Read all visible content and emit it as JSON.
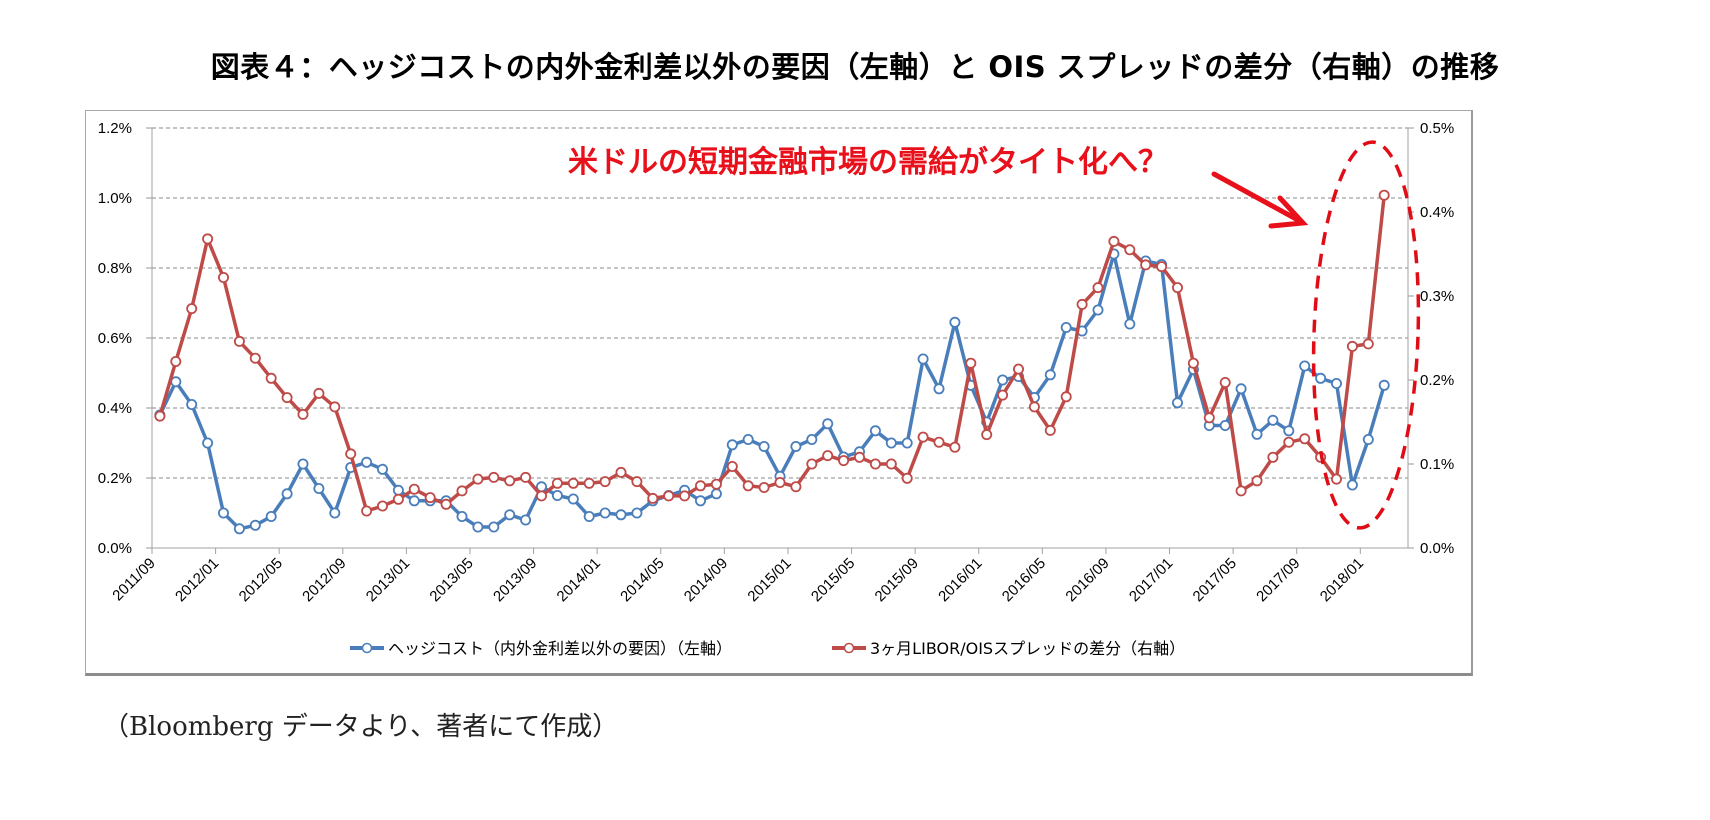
{
  "title": "図表４：ヘッジコストの内外金利差以外の要因（左軸）と OIS スプレッドの差分（右軸）の推移",
  "source_note": "（Bloomberg データより、著者にて作成）",
  "chart_data": {
    "type": "line",
    "title": "図表４：ヘッジコストの内外金利差以外の要因（左軸）と OIS スプレッドの差分（右軸）の推移",
    "xlabel": "",
    "ylabel": "",
    "x_start": "2011/09",
    "x_end": "2018/02",
    "x_tick_labels": [
      "2011/09",
      "2012/01",
      "2012/05",
      "2012/09",
      "2013/01",
      "2013/05",
      "2013/09",
      "2014/01",
      "2014/05",
      "2014/09",
      "2015/01",
      "2015/05",
      "2015/09",
      "2016/01",
      "2016/05",
      "2016/09",
      "2017/01",
      "2017/05",
      "2017/09",
      "2018/01"
    ],
    "y_left": {
      "ylim": [
        0,
        1.2
      ],
      "ticks": [
        "0.0%",
        "0.2%",
        "0.4%",
        "0.6%",
        "0.8%",
        "1.0%",
        "1.2%"
      ],
      "tick_values": [
        0,
        0.2,
        0.4,
        0.6,
        0.8,
        1.0,
        1.2
      ]
    },
    "y_right": {
      "ylim": [
        0,
        0.5
      ],
      "ticks": [
        "0.0%",
        "0.1%",
        "0.2%",
        "0.3%",
        "0.4%",
        "0.5%"
      ],
      "tick_values": [
        0,
        0.1,
        0.2,
        0.3,
        0.4,
        0.5
      ]
    },
    "grid": "horizontal dashed (left axis)",
    "legend_position": "bottom",
    "series": [
      {
        "name": "ヘッジコスト（内外金利差以外の要因）（左軸）",
        "axis": "left",
        "color": "#4a7ebb",
        "unit": "%",
        "values": [
          0.38,
          0.475,
          0.41,
          0.3,
          0.1,
          0.055,
          0.065,
          0.09,
          0.155,
          0.24,
          0.17,
          0.1,
          0.23,
          0.245,
          0.225,
          0.165,
          0.135,
          0.135,
          0.135,
          0.09,
          0.06,
          0.06,
          0.095,
          0.08,
          0.175,
          0.15,
          0.14,
          0.09,
          0.1,
          0.095,
          0.1,
          0.135,
          0.15,
          0.165,
          0.135,
          0.155,
          0.295,
          0.31,
          0.29,
          0.205,
          0.29,
          0.31,
          0.355,
          0.26,
          0.275,
          0.335,
          0.3,
          0.3,
          0.54,
          0.455,
          0.645,
          0.465,
          0.36,
          0.48,
          0.49,
          0.43,
          0.495,
          0.63,
          0.62,
          0.68,
          0.84,
          0.64,
          0.82,
          0.81,
          0.415,
          0.51,
          0.35,
          0.35,
          0.455,
          0.325,
          0.365,
          0.335,
          0.52,
          0.485,
          0.47,
          0.18,
          0.31,
          0.465
        ]
      },
      {
        "name": "3ヶ月LIBOR/OISスプレッドの差分（右軸）",
        "axis": "right",
        "color": "#be4b48",
        "unit": "%",
        "values": [
          0.157,
          0.222,
          0.285,
          0.368,
          0.322,
          0.246,
          0.226,
          0.202,
          0.179,
          0.159,
          0.184,
          0.168,
          0.112,
          0.044,
          0.05,
          0.058,
          0.07,
          0.06,
          0.052,
          0.068,
          0.082,
          0.084,
          0.08,
          0.084,
          0.062,
          0.077,
          0.077,
          0.077,
          0.079,
          0.09,
          0.079,
          0.059,
          0.062,
          0.062,
          0.074,
          0.076,
          0.097,
          0.074,
          0.072,
          0.078,
          0.073,
          0.1,
          0.11,
          0.104,
          0.108,
          0.1,
          0.1,
          0.083,
          0.132,
          0.126,
          0.12,
          0.22,
          0.135,
          0.182,
          0.213,
          0.168,
          0.14,
          0.18,
          0.29,
          0.31,
          0.365,
          0.355,
          0.337,
          0.335,
          0.31,
          0.22,
          0.155,
          0.197,
          0.068,
          0.08,
          0.108,
          0.126,
          0.13,
          0.108,
          0.082,
          0.24,
          0.243,
          0.42
        ]
      }
    ],
    "annotations": [
      {
        "text": "米ドルの短期金融市場の需給がタイト化へ？",
        "color": "#e8101a",
        "type": "callout-with-arrow",
        "target": "2017/09–2018/02 (dashed ellipse)"
      }
    ]
  }
}
